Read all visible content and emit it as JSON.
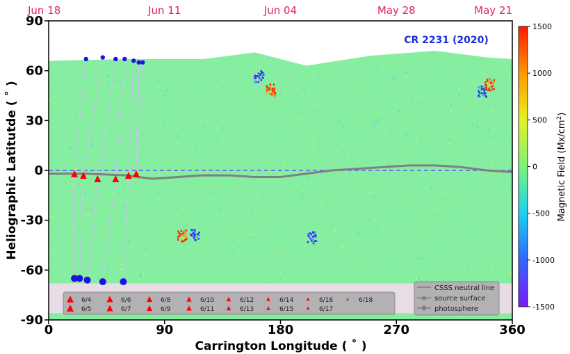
{
  "chart_data": {
    "type": "scatter",
    "title": "CR 2231 (2020)",
    "xlabel": "Carrington Longitude ( ˚ )",
    "ylabel": "Heliographic Latitutde ( ˚ )",
    "xlim": [
      0,
      360
    ],
    "ylim": [
      -90,
      90
    ],
    "x_ticks": [
      0,
      90,
      180,
      270,
      360
    ],
    "y_ticks": [
      90,
      60,
      30,
      0,
      -30,
      -60,
      -90
    ],
    "top_axis_dates": [
      {
        "label": "Jun 18",
        "x": 0
      },
      {
        "label": "Jun 11",
        "x": 90
      },
      {
        "label": "Jun 04",
        "x": 180
      },
      {
        "label": "May 28",
        "x": 270
      },
      {
        "label": "May 21",
        "x": 360
      }
    ],
    "colorbar": {
      "label": "Magnetic Field (Mx/cm^2)",
      "range": [
        -1500,
        1500
      ],
      "ticks": [
        1500,
        1000,
        500,
        0,
        -500,
        -1000,
        -1500
      ],
      "colors": [
        "#ff1a00",
        "#ff9900",
        "#e6f020",
        "#7cf27c",
        "#1ad0f0",
        "#3366ff",
        "#7a1bf5"
      ]
    },
    "neutral_line": {
      "name": "CSSS neutral line",
      "x": [
        0,
        30,
        60,
        80,
        100,
        120,
        140,
        160,
        180,
        200,
        220,
        240,
        260,
        280,
        300,
        320,
        340,
        360
      ],
      "y": [
        -2,
        -2,
        -3,
        -5,
        -4,
        -3,
        -3,
        -4,
        -4,
        -2,
        0,
        1,
        2,
        3,
        3,
        2,
        0,
        -1
      ]
    },
    "equator_line": {
      "y": 0,
      "color": "#6655ff"
    },
    "source_surface_points": {
      "name": "source surface",
      "x": [
        20,
        27,
        38,
        52,
        62,
        68
      ],
      "y": [
        -2,
        -3,
        -5,
        -5,
        -3,
        -2
      ],
      "labels": [
        "6/4",
        "6/5",
        "6/6",
        "6/7",
        "6/8",
        "6/9"
      ]
    },
    "photosphere_points": {
      "name": "photosphere",
      "north": {
        "x": [
          29,
          42,
          52,
          59,
          66,
          70,
          73
        ],
        "y": [
          67,
          68,
          67,
          67,
          66,
          65,
          65
        ]
      },
      "south": {
        "x": [
          20,
          24,
          30,
          42,
          58
        ],
        "y": [
          -65,
          -65,
          -66,
          -67,
          -67
        ]
      }
    },
    "active_regions": [
      {
        "x": 163,
        "y": 57,
        "polarity": "negative"
      },
      {
        "x": 172,
        "y": 49,
        "polarity": "positive"
      },
      {
        "x": 336,
        "y": 48,
        "polarity": "negative"
      },
      {
        "x": 342,
        "y": 52,
        "polarity": "positive"
      },
      {
        "x": 103,
        "y": -39,
        "polarity": "positive"
      },
      {
        "x": 113,
        "y": -38,
        "polarity": "negative"
      },
      {
        "x": 204,
        "y": -40,
        "polarity": "negative"
      }
    ],
    "legend": {
      "position": "bottom-right",
      "dates": [
        "6/4",
        "6/5",
        "6/6",
        "6/7",
        "6/8",
        "6/9",
        "6/10",
        "6/11",
        "6/12",
        "6/13",
        "6/14",
        "6/15",
        "6/16",
        "6/17",
        "6/18"
      ],
      "items": [
        "CSSS neutral line",
        "source surface",
        "photosphere"
      ]
    },
    "colors": {
      "map_background": "#86eea0",
      "polar_gap": "#ffffff",
      "south_polar": "#e8dde6",
      "marker_red": "#ff0000",
      "marker_blue": "#1f10e8",
      "neutral_line": "#808080",
      "legend_bg": "#a9a9a9"
    }
  }
}
